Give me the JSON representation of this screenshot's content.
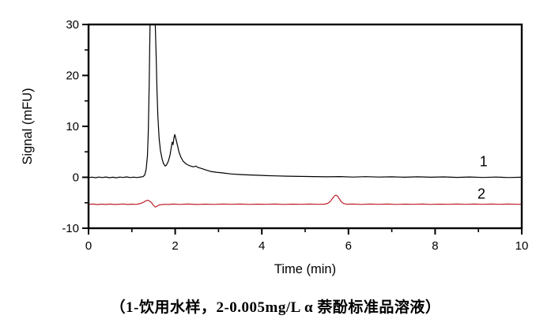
{
  "figure": {
    "caption": "（1-饮用水样，2-0.005mg/L  α 萘酚标准品溶液）"
  },
  "chart_data": {
    "type": "line",
    "title": "",
    "xlabel": "Time (min)",
    "ylabel": "Signal (mFU)",
    "xlim": [
      0,
      10
    ],
    "ylim": [
      -10,
      30
    ],
    "x_major_ticks": [
      0,
      2,
      4,
      6,
      8,
      10
    ],
    "x_minor_ticks": [
      1,
      3,
      5,
      7,
      9
    ],
    "y_major_ticks": [
      -10,
      0,
      10,
      20,
      30
    ],
    "y_minor_ticks": [
      -5,
      5,
      15,
      25
    ],
    "grid": false,
    "legend": "inline numeric labels at right of each trace",
    "axis_color": "#000000",
    "series": [
      {
        "name": "1",
        "label": "1",
        "description": "饮用水样",
        "color": "#000000",
        "label_pos": [
          9.12,
          2.2
        ],
        "peaks_min": [
          1.48,
          1.99
        ],
        "points": [
          [
            0,
            -0.05
          ],
          [
            0.08,
            0.03
          ],
          [
            0.16,
            -0.08
          ],
          [
            0.24,
            0.04
          ],
          [
            0.32,
            -0.05
          ],
          [
            0.4,
            0.06
          ],
          [
            0.48,
            -0.07
          ],
          [
            0.56,
            0.01
          ],
          [
            0.64,
            -0.1
          ],
          [
            0.72,
            0.05
          ],
          [
            0.8,
            -0.03
          ],
          [
            0.88,
            0.07
          ],
          [
            0.96,
            -0.05
          ],
          [
            1.04,
            0.03
          ],
          [
            1.12,
            -0.04
          ],
          [
            1.2,
            0.06
          ],
          [
            1.26,
            0.12
          ],
          [
            1.3,
            0.5
          ],
          [
            1.33,
            1.6
          ],
          [
            1.36,
            4.2
          ],
          [
            1.38,
            9
          ],
          [
            1.4,
            18
          ],
          [
            1.42,
            30
          ],
          [
            1.44,
            35
          ],
          [
            1.48,
            36
          ],
          [
            1.52,
            35
          ],
          [
            1.54,
            30
          ],
          [
            1.56,
            24
          ],
          [
            1.58,
            17
          ],
          [
            1.6,
            12
          ],
          [
            1.63,
            7.6
          ],
          [
            1.66,
            5.2
          ],
          [
            1.7,
            3.5
          ],
          [
            1.73,
            2.7
          ],
          [
            1.77,
            2.2
          ],
          [
            1.8,
            2.4
          ],
          [
            1.84,
            3.1
          ],
          [
            1.88,
            4.3
          ],
          [
            1.91,
            5.9
          ],
          [
            1.93,
            6.9
          ],
          [
            1.95,
            6.4
          ],
          [
            1.97,
            7.7
          ],
          [
            1.99,
            8.4
          ],
          [
            2.01,
            7.8
          ],
          [
            2.03,
            7.1
          ],
          [
            2.06,
            6.0
          ],
          [
            2.09,
            4.9
          ],
          [
            2.13,
            4.0
          ],
          [
            2.18,
            3.2
          ],
          [
            2.24,
            2.7
          ],
          [
            2.3,
            2.4
          ],
          [
            2.36,
            2.2
          ],
          [
            2.42,
            2.05
          ],
          [
            2.48,
            2.2
          ],
          [
            2.52,
            1.95
          ],
          [
            2.6,
            1.75
          ],
          [
            2.7,
            1.45
          ],
          [
            2.82,
            1.15
          ],
          [
            2.95,
            1.0
          ],
          [
            3.1,
            0.85
          ],
          [
            3.3,
            0.65
          ],
          [
            3.5,
            0.55
          ],
          [
            3.7,
            0.47
          ],
          [
            3.9,
            0.4
          ],
          [
            4.1,
            0.33
          ],
          [
            4.3,
            0.28
          ],
          [
            4.6,
            0.22
          ],
          [
            4.9,
            0.17
          ],
          [
            5.2,
            0.14
          ],
          [
            5.5,
            0.1
          ],
          [
            5.8,
            0.14
          ],
          [
            6.1,
            0.05
          ],
          [
            6.4,
            0.12
          ],
          [
            6.7,
            0.04
          ],
          [
            7,
            0.1
          ],
          [
            7.3,
            0.02
          ],
          [
            7.6,
            0.09
          ],
          [
            7.9,
            0.01
          ],
          [
            8.2,
            0.07
          ],
          [
            8.5,
            -0.01
          ],
          [
            8.8,
            0.06
          ],
          [
            9.1,
            -0.03
          ],
          [
            9.4,
            0.04
          ],
          [
            9.7,
            -0.04
          ],
          [
            10,
            0.02
          ]
        ]
      },
      {
        "name": "2",
        "label": "2",
        "description": "0.005mg/L α萘酚标准品溶液",
        "color": "#be202a",
        "label_pos": [
          9.07,
          -4.2
        ],
        "peaks_min": [
          5.71
        ],
        "points": [
          [
            0,
            -5.3
          ],
          [
            0.1,
            -5.25
          ],
          [
            0.2,
            -5.35
          ],
          [
            0.3,
            -5.27
          ],
          [
            0.4,
            -5.33
          ],
          [
            0.5,
            -5.25
          ],
          [
            0.6,
            -5.34
          ],
          [
            0.7,
            -5.29
          ],
          [
            0.8,
            -5.24
          ],
          [
            0.9,
            -5.33
          ],
          [
            1,
            -5.27
          ],
          [
            1.1,
            -5.32
          ],
          [
            1.18,
            -5.2
          ],
          [
            1.25,
            -4.98
          ],
          [
            1.31,
            -4.68
          ],
          [
            1.36,
            -4.5
          ],
          [
            1.4,
            -4.62
          ],
          [
            1.45,
            -4.95
          ],
          [
            1.5,
            -5.5
          ],
          [
            1.54,
            -5.85
          ],
          [
            1.58,
            -5.68
          ],
          [
            1.62,
            -5.45
          ],
          [
            1.68,
            -5.36
          ],
          [
            1.75,
            -5.3
          ],
          [
            1.85,
            -5.33
          ],
          [
            1.95,
            -5.26
          ],
          [
            2.1,
            -5.32
          ],
          [
            2.3,
            -5.25
          ],
          [
            2.5,
            -5.33
          ],
          [
            2.7,
            -5.27
          ],
          [
            2.9,
            -5.32
          ],
          [
            3.1,
            -5.26
          ],
          [
            3.3,
            -5.31
          ],
          [
            3.5,
            -5.25
          ],
          [
            3.7,
            -5.32
          ],
          [
            3.9,
            -5.27
          ],
          [
            4.1,
            -5.31
          ],
          [
            4.3,
            -5.25
          ],
          [
            4.5,
            -5.32
          ],
          [
            4.7,
            -5.27
          ],
          [
            4.9,
            -5.31
          ],
          [
            5.1,
            -5.26
          ],
          [
            5.3,
            -5.3
          ],
          [
            5.45,
            -5.27
          ],
          [
            5.52,
            -5.12
          ],
          [
            5.58,
            -4.75
          ],
          [
            5.63,
            -4.15
          ],
          [
            5.68,
            -3.65
          ],
          [
            5.71,
            -3.5
          ],
          [
            5.75,
            -3.7
          ],
          [
            5.79,
            -4.25
          ],
          [
            5.84,
            -4.85
          ],
          [
            5.89,
            -5.15
          ],
          [
            5.95,
            -5.28
          ],
          [
            6.1,
            -5.26
          ],
          [
            6.3,
            -5.32
          ],
          [
            6.5,
            -5.26
          ],
          [
            6.7,
            -5.31
          ],
          [
            6.9,
            -5.25
          ],
          [
            7.1,
            -5.32
          ],
          [
            7.3,
            -5.27
          ],
          [
            7.5,
            -5.31
          ],
          [
            7.7,
            -5.25
          ],
          [
            7.9,
            -5.32
          ],
          [
            8.1,
            -5.27
          ],
          [
            8.3,
            -5.3
          ],
          [
            8.5,
            -5.25
          ],
          [
            8.7,
            -5.31
          ],
          [
            8.9,
            -5.26
          ],
          [
            9.1,
            -5.31
          ],
          [
            9.3,
            -5.26
          ],
          [
            9.5,
            -5.3
          ],
          [
            9.7,
            -5.26
          ],
          [
            9.9,
            -5.31
          ],
          [
            10,
            -5.28
          ]
        ]
      }
    ]
  }
}
